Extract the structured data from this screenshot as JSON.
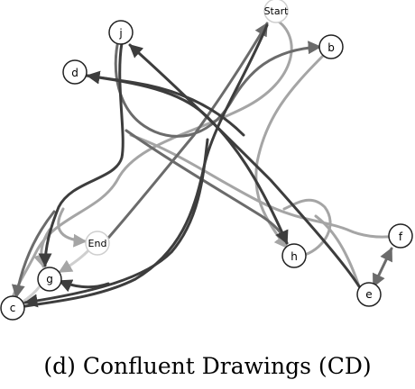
{
  "nodes": {
    "start": "Start",
    "b": "b",
    "j": "j",
    "d": "d",
    "end": "End",
    "g": "g",
    "c": "c",
    "h": "h",
    "f": "f",
    "e": "e"
  },
  "caption": "(d)  Confluent Drawings (CD)",
  "colors": {
    "dark": "#3d3d3d",
    "mid": "#6b6b6b",
    "light": "#a5a5a5",
    "pale": "#cfcfcf"
  }
}
